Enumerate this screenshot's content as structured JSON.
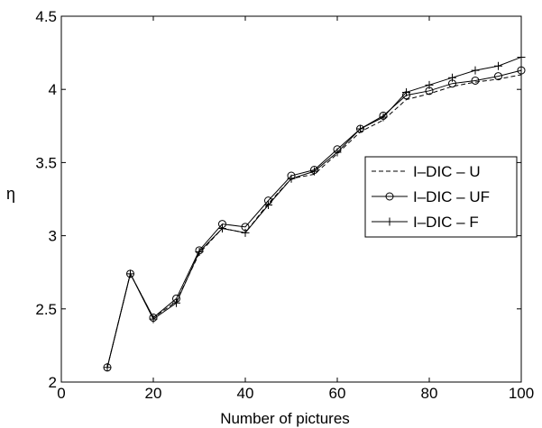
{
  "chart_data": {
    "type": "line",
    "xlabel": "Number of pictures",
    "ylabel": "η",
    "xlim": [
      0,
      100
    ],
    "ylim": [
      2,
      4.5
    ],
    "xticks": [
      0,
      20,
      40,
      60,
      80,
      100
    ],
    "yticks": [
      2,
      2.5,
      3,
      3.5,
      4,
      4.5
    ],
    "xtick_labels": [
      "0",
      "20",
      "40",
      "60",
      "80",
      "100"
    ],
    "ytick_labels": [
      "2",
      "2.5",
      "3",
      "3.5",
      "4",
      "4.5"
    ],
    "grid": false,
    "legend_position": "right",
    "x": [
      10,
      15,
      20,
      25,
      30,
      35,
      40,
      45,
      50,
      55,
      60,
      65,
      70,
      75,
      80,
      85,
      90,
      95,
      100
    ],
    "series": [
      {
        "name": "I–DIC – U",
        "style": "dashed",
        "marker": "none",
        "color": "#000000",
        "values": [
          2.1,
          2.74,
          2.44,
          2.55,
          2.88,
          3.05,
          3.02,
          3.22,
          3.39,
          3.42,
          3.56,
          3.71,
          3.79,
          3.93,
          3.97,
          4.02,
          4.05,
          4.07,
          4.1
        ]
      },
      {
        "name": "I–DIC – UF",
        "style": "solid",
        "marker": "circle",
        "color": "#000000",
        "values": [
          2.1,
          2.74,
          2.44,
          2.57,
          2.9,
          3.08,
          3.06,
          3.24,
          3.41,
          3.45,
          3.59,
          3.73,
          3.82,
          3.96,
          3.99,
          4.04,
          4.06,
          4.09,
          4.13
        ]
      },
      {
        "name": "I–DIC – F",
        "style": "solid",
        "marker": "plus",
        "color": "#000000",
        "values": [
          2.1,
          2.74,
          2.43,
          2.54,
          2.89,
          3.05,
          3.02,
          3.21,
          3.39,
          3.44,
          3.57,
          3.73,
          3.81,
          3.98,
          4.03,
          4.08,
          4.13,
          4.16,
          4.22
        ]
      }
    ]
  }
}
